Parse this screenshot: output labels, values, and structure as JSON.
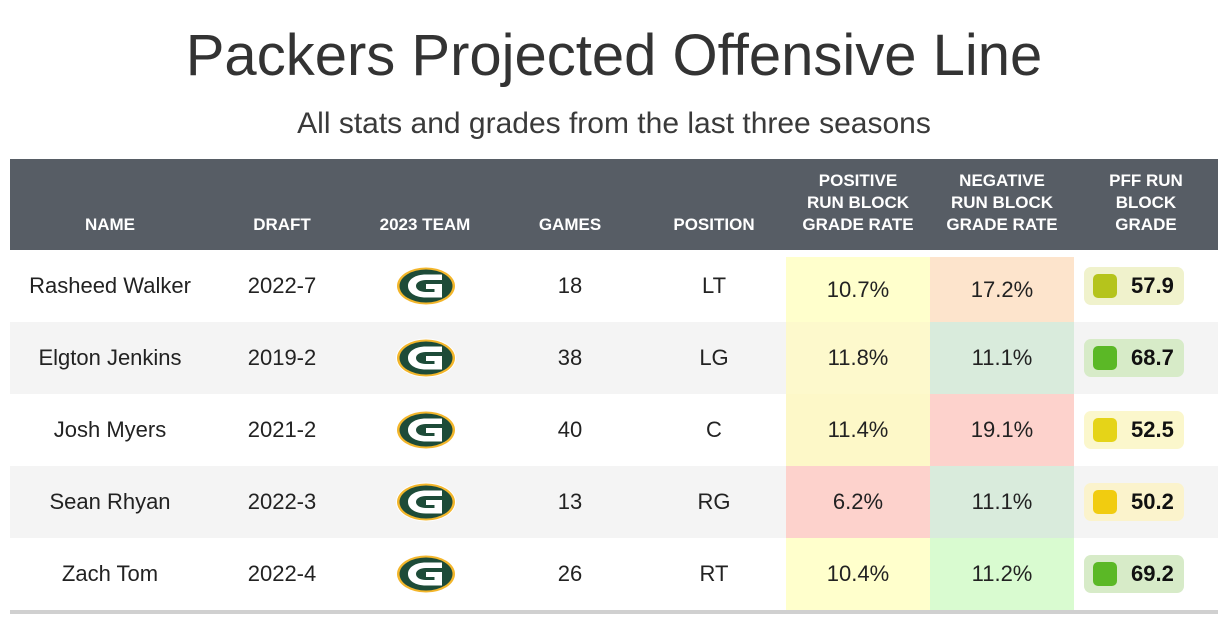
{
  "title": "Packers Projected Offensive Line",
  "subtitle": "All stats and grades from the last three seasons",
  "header": {
    "name": "NAME",
    "draft": "DRAFT",
    "team": "2023 TEAM",
    "games": "GAMES",
    "position": "POSITION",
    "positive": "POSITIVE\nRUN BLOCK\nGRADE RATE",
    "negative": "NEGATIVE\nRUN BLOCK\nGRADE RATE",
    "grade": "PFF RUN\nBLOCK\nGRADE"
  },
  "team_logo_icon": "green-bay-packers-g-logo-icon",
  "colors": {
    "header_bg": "#575d65",
    "logo_green": "#1d4b38",
    "logo_gold": "#f3b62b"
  },
  "chart_data": {
    "type": "table",
    "title": "Packers Projected Offensive Line",
    "subtitle": "All stats and grades from the last three seasons",
    "columns": [
      "NAME",
      "DRAFT",
      "2023 TEAM",
      "GAMES",
      "POSITION",
      "POSITIVE RUN BLOCK GRADE RATE",
      "NEGATIVE RUN BLOCK GRADE RATE",
      "PFF RUN BLOCK GRADE"
    ],
    "rows": [
      {
        "name": "Rasheed Walker",
        "draft": "2022-7",
        "team": "GB",
        "games": "18",
        "position": "LT",
        "positive": "10.7%",
        "negative": "17.2%",
        "grade": "57.9",
        "positive_color": "#ffffcc",
        "negative_color": "#fde4cc",
        "grade_bg": "#f0f2cc",
        "grade_dot": "#b5c41c"
      },
      {
        "name": "Elgton Jenkins",
        "draft": "2019-2",
        "team": "GB",
        "games": "38",
        "position": "LG",
        "positive": "11.8%",
        "negative": "11.1%",
        "grade": "68.7",
        "positive_color": "#fdf9cc",
        "negative_color": "#d9ebdc",
        "grade_bg": "#d7ebc8",
        "grade_dot": "#5bb826"
      },
      {
        "name": "Josh Myers",
        "draft": "2021-2",
        "team": "GB",
        "games": "40",
        "position": "C",
        "positive": "11.4%",
        "negative": "19.1%",
        "grade": "52.5",
        "positive_color": "#fdf8c8",
        "negative_color": "#fdd2cc",
        "grade_bg": "#fbf7cc",
        "grade_dot": "#e5d418"
      },
      {
        "name": "Sean Rhyan",
        "draft": "2022-3",
        "team": "GB",
        "games": "13",
        "position": "RG",
        "positive": "6.2%",
        "negative": "11.1%",
        "grade": "50.2",
        "positive_color": "#fdd2cc",
        "negative_color": "#d9ebdc",
        "grade_bg": "#fbf3cc",
        "grade_dot": "#f1cc10"
      },
      {
        "name": "Zach Tom",
        "draft": "2022-4",
        "team": "GB",
        "games": "26",
        "position": "RT",
        "positive": "10.4%",
        "negative": "11.2%",
        "grade": "69.2",
        "positive_color": "#ffffcc",
        "negative_color": "#d9fbd0",
        "grade_bg": "#d7ebc8",
        "grade_dot": "#5bb826"
      }
    ]
  }
}
